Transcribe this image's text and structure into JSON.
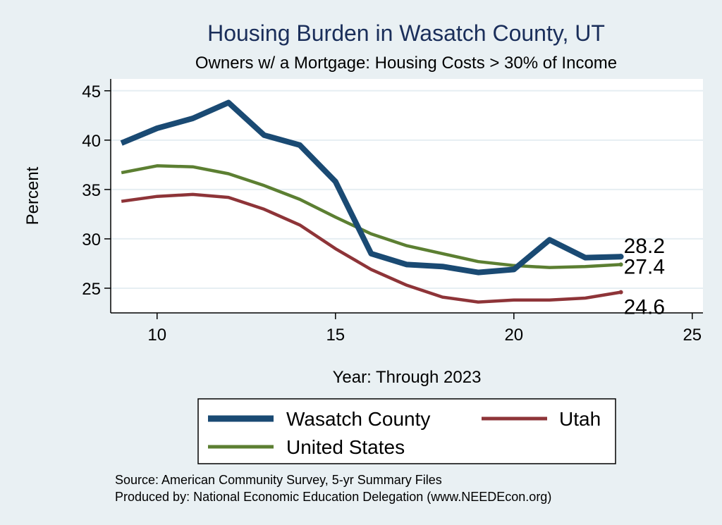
{
  "chart_data": {
    "type": "line",
    "title": "Housing Burden in Wasatch County, UT",
    "subtitle": "Owners w/ a Mortgage: Housing Costs > 30% of Income",
    "xlabel": "Year: Through 2023",
    "ylabel": "Percent",
    "xlim": [
      8.7,
      25.3
    ],
    "ylim": [
      22.5,
      46.2
    ],
    "xticks": [
      10,
      15,
      20,
      25
    ],
    "yticks": [
      25,
      30,
      35,
      40,
      45
    ],
    "grid": true,
    "x": [
      9,
      10,
      11,
      12,
      13,
      14,
      15,
      16,
      17,
      18,
      19,
      20,
      21,
      22,
      23
    ],
    "series": [
      {
        "name": "Wasatch County",
        "color": "#1a4a73",
        "values": [
          39.7,
          41.2,
          42.2,
          43.8,
          40.5,
          39.5,
          35.8,
          28.5,
          27.4,
          27.2,
          26.6,
          26.9,
          29.9,
          28.1,
          28.2
        ],
        "end_label": "28.2"
      },
      {
        "name": "Utah",
        "color": "#8e3438",
        "values": [
          33.8,
          34.3,
          34.5,
          34.2,
          33.0,
          31.4,
          29.0,
          26.9,
          25.3,
          24.1,
          23.6,
          23.8,
          23.8,
          24.0,
          24.6
        ],
        "end_label": "24.6"
      },
      {
        "name": "United States",
        "color": "#5c7f32",
        "values": [
          36.7,
          37.4,
          37.3,
          36.6,
          35.4,
          34.0,
          32.2,
          30.5,
          29.3,
          28.5,
          27.7,
          27.3,
          27.1,
          27.2,
          27.4
        ],
        "end_label": "27.4"
      }
    ],
    "legend": {
      "placement": "bottom",
      "order": [
        "Wasatch County",
        "Utah",
        "United States"
      ]
    },
    "notes": [
      "Source: American Community Survey, 5-yr Summary Files",
      "Produced by: National Economic Education Delegation (www.NEEDEcon.org)"
    ]
  }
}
